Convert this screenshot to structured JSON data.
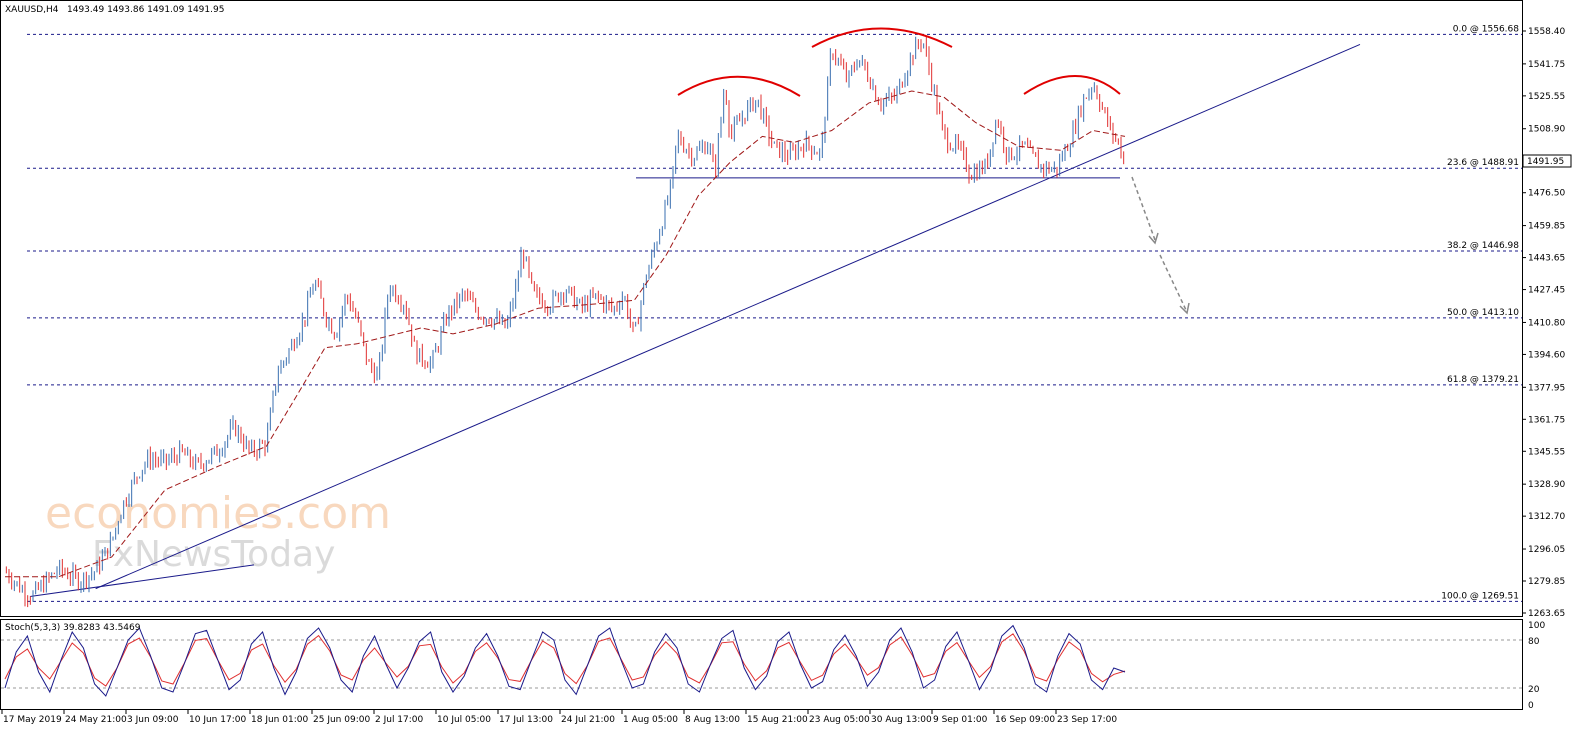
{
  "header": {
    "symbol": "XAUUSD,H4",
    "ohlc": "1493.49 1493.86 1491.09 1491.95"
  },
  "stoch": {
    "label": "Stoch(5,3,3) 39.8283 43.5469",
    "ticks": [
      "100",
      "80",
      "20",
      "0"
    ]
  },
  "watermark": {
    "line1": "economies.com",
    "line2": "FxNewsToday"
  },
  "colors": {
    "bull": "#3a6fb0",
    "bear": "#e03030",
    "trendline": "#1a1a8a",
    "fib": "#1a1a8a",
    "ma": "#a01818",
    "pattern": "#e00000",
    "arrow": "#888888",
    "stoch_main": "#1a1a8a",
    "stoch_signal": "#e03030",
    "price_box": "#ffffff"
  },
  "chart_data": {
    "type": "candlestick",
    "title": "XAUUSD,H4",
    "y_axis_ticks": [
      "1558.40",
      "1541.75",
      "1525.55",
      "1508.90",
      "1492.70",
      "1476.50",
      "1459.85",
      "1443.65",
      "1427.45",
      "1410.80",
      "1394.60",
      "1377.95",
      "1361.75",
      "1345.55",
      "1328.90",
      "1312.70",
      "1296.05",
      "1279.85",
      "1263.65"
    ],
    "x_axis_ticks": [
      "17 May 2019",
      "24 May 21:00",
      "3 Jun 09:00",
      "10 Jun 17:00",
      "18 Jun 01:00",
      "25 Jun 09:00",
      "2 Jul 17:00",
      "10 Jul 05:00",
      "17 Jul 13:00",
      "24 Jul 21:00",
      "1 Aug 05:00",
      "8 Aug 13:00",
      "15 Aug 21:00",
      "23 Aug 05:00",
      "30 Aug 13:00",
      "9 Sep 01:00",
      "16 Sep 09:00",
      "23 Sep 17:00"
    ],
    "ylim": [
      1262,
      1566
    ],
    "current_price": "1491.95",
    "fibonacci": [
      {
        "label": "0.0 @ 1556.68",
        "value": 1556.68
      },
      {
        "label": "23.6 @ 1488.91",
        "value": 1488.91
      },
      {
        "label": "38.2 @ 1446.98",
        "value": 1446.98
      },
      {
        "label": "50.0 @ 1413.10",
        "value": 1413.1
      },
      {
        "label": "61.8 @ 1379.21",
        "value": 1379.21
      },
      {
        "label": "100.0 @ 1269.51",
        "value": 1269.51
      }
    ],
    "price_path": [
      {
        "t": 0,
        "p": 1285
      },
      {
        "t": 3,
        "p": 1276
      },
      {
        "t": 5,
        "p": 1272
      },
      {
        "t": 10,
        "p": 1286
      },
      {
        "t": 14,
        "p": 1280
      },
      {
        "t": 17,
        "p": 1285
      },
      {
        "t": 20,
        "p": 1300
      },
      {
        "t": 22,
        "p": 1318
      },
      {
        "t": 25,
        "p": 1335
      },
      {
        "t": 27,
        "p": 1342
      },
      {
        "t": 30,
        "p": 1340
      },
      {
        "t": 33,
        "p": 1345
      },
      {
        "t": 36,
        "p": 1338
      },
      {
        "t": 40,
        "p": 1346
      },
      {
        "t": 43,
        "p": 1358
      },
      {
        "t": 46,
        "p": 1345
      },
      {
        "t": 49,
        "p": 1350
      },
      {
        "t": 51,
        "p": 1385
      },
      {
        "t": 53,
        "p": 1395
      },
      {
        "t": 56,
        "p": 1412
      },
      {
        "t": 58,
        "p": 1432
      },
      {
        "t": 60,
        "p": 1415
      },
      {
        "t": 62,
        "p": 1405
      },
      {
        "t": 64,
        "p": 1425
      },
      {
        "t": 66,
        "p": 1412
      },
      {
        "t": 68,
        "p": 1390
      },
      {
        "t": 70,
        "p": 1383
      },
      {
        "t": 72,
        "p": 1430
      },
      {
        "t": 75,
        "p": 1420
      },
      {
        "t": 77,
        "p": 1395
      },
      {
        "t": 80,
        "p": 1390
      },
      {
        "t": 83,
        "p": 1415
      },
      {
        "t": 86,
        "p": 1425
      },
      {
        "t": 89,
        "p": 1415
      },
      {
        "t": 92,
        "p": 1412
      },
      {
        "t": 94,
        "p": 1408
      },
      {
        "t": 96,
        "p": 1430
      },
      {
        "t": 97,
        "p": 1448
      },
      {
        "t": 99,
        "p": 1425
      },
      {
        "t": 102,
        "p": 1420
      },
      {
        "t": 105,
        "p": 1428
      },
      {
        "t": 108,
        "p": 1418
      },
      {
        "t": 111,
        "p": 1424
      },
      {
        "t": 114,
        "p": 1417
      },
      {
        "t": 116,
        "p": 1425
      },
      {
        "t": 118,
        "p": 1403
      },
      {
        "t": 120,
        "p": 1432
      },
      {
        "t": 123,
        "p": 1460
      },
      {
        "t": 125,
        "p": 1480
      },
      {
        "t": 126,
        "p": 1505
      },
      {
        "t": 129,
        "p": 1495
      },
      {
        "t": 132,
        "p": 1502
      },
      {
        "t": 133,
        "p": 1485
      },
      {
        "t": 135,
        "p": 1532
      },
      {
        "t": 136,
        "p": 1505
      },
      {
        "t": 139,
        "p": 1518
      },
      {
        "t": 141,
        "p": 1524
      },
      {
        "t": 144,
        "p": 1500
      },
      {
        "t": 147,
        "p": 1495
      },
      {
        "t": 150,
        "p": 1502
      },
      {
        "t": 153,
        "p": 1496
      },
      {
        "t": 155,
        "p": 1550
      },
      {
        "t": 158,
        "p": 1533
      },
      {
        "t": 160,
        "p": 1545
      },
      {
        "t": 162,
        "p": 1535
      },
      {
        "t": 164,
        "p": 1522
      },
      {
        "t": 167,
        "p": 1525
      },
      {
        "t": 170,
        "p": 1546
      },
      {
        "t": 172,
        "p": 1555
      },
      {
        "t": 174,
        "p": 1530
      },
      {
        "t": 176,
        "p": 1505
      },
      {
        "t": 179,
        "p": 1498
      },
      {
        "t": 181,
        "p": 1486
      },
      {
        "t": 184,
        "p": 1490
      },
      {
        "t": 186,
        "p": 1515
      },
      {
        "t": 188,
        "p": 1495
      },
      {
        "t": 191,
        "p": 1500
      },
      {
        "t": 194,
        "p": 1490
      },
      {
        "t": 197,
        "p": 1488
      },
      {
        "t": 200,
        "p": 1505
      },
      {
        "t": 202,
        "p": 1522
      },
      {
        "t": 204,
        "p": 1532
      },
      {
        "t": 205,
        "p": 1525
      },
      {
        "t": 207,
        "p": 1510
      },
      {
        "t": 209,
        "p": 1500
      },
      {
        "t": 210,
        "p": 1492
      }
    ],
    "ma_path": [
      {
        "t": 0,
        "p": 1282
      },
      {
        "t": 10,
        "p": 1282
      },
      {
        "t": 20,
        "p": 1292
      },
      {
        "t": 30,
        "p": 1326
      },
      {
        "t": 40,
        "p": 1338
      },
      {
        "t": 49,
        "p": 1348
      },
      {
        "t": 55,
        "p": 1375
      },
      {
        "t": 60,
        "p": 1398
      },
      {
        "t": 66,
        "p": 1400
      },
      {
        "t": 72,
        "p": 1404
      },
      {
        "t": 78,
        "p": 1408
      },
      {
        "t": 84,
        "p": 1405
      },
      {
        "t": 92,
        "p": 1410
      },
      {
        "t": 100,
        "p": 1418
      },
      {
        "t": 110,
        "p": 1420
      },
      {
        "t": 118,
        "p": 1422
      },
      {
        "t": 124,
        "p": 1445
      },
      {
        "t": 130,
        "p": 1475
      },
      {
        "t": 136,
        "p": 1492
      },
      {
        "t": 142,
        "p": 1505
      },
      {
        "t": 148,
        "p": 1502
      },
      {
        "t": 155,
        "p": 1508
      },
      {
        "t": 162,
        "p": 1522
      },
      {
        "t": 170,
        "p": 1528
      },
      {
        "t": 176,
        "p": 1525
      },
      {
        "t": 182,
        "p": 1512
      },
      {
        "t": 190,
        "p": 1500
      },
      {
        "t": 198,
        "p": 1498
      },
      {
        "t": 204,
        "p": 1508
      },
      {
        "t": 210,
        "p": 1505
      }
    ],
    "neckline": 1484,
    "trendline": {
      "t1": 17,
      "p1": 1276,
      "t2": 220,
      "p2": 1512
    },
    "minor_trendline": {
      "t1": 0,
      "p1": 1270,
      "t2": 42,
      "p2": 1285
    },
    "pattern": "head and shoulders",
    "stoch_values": [
      20,
      65,
      85,
      40,
      15,
      55,
      90,
      70,
      25,
      10,
      45,
      80,
      95,
      60,
      20,
      15,
      50,
      88,
      92,
      55,
      18,
      30,
      75,
      90,
      45,
      12,
      40,
      82,
      95,
      70,
      30,
      15,
      60,
      85,
      50,
      20,
      45,
      78,
      90,
      40,
      15,
      35,
      70,
      88,
      60,
      22,
      18,
      55,
      90,
      80,
      30,
      12,
      48,
      85,
      95,
      55,
      20,
      25,
      65,
      88,
      70,
      25,
      15,
      50,
      82,
      92,
      45,
      18,
      35,
      78,
      90,
      50,
      20,
      28,
      68,
      86,
      60,
      22,
      40,
      80,
      95,
      65,
      20,
      30,
      72,
      90,
      55,
      18,
      42,
      85,
      98,
      70,
      25,
      15,
      60,
      88,
      75,
      30,
      18,
      45,
      40
    ]
  }
}
